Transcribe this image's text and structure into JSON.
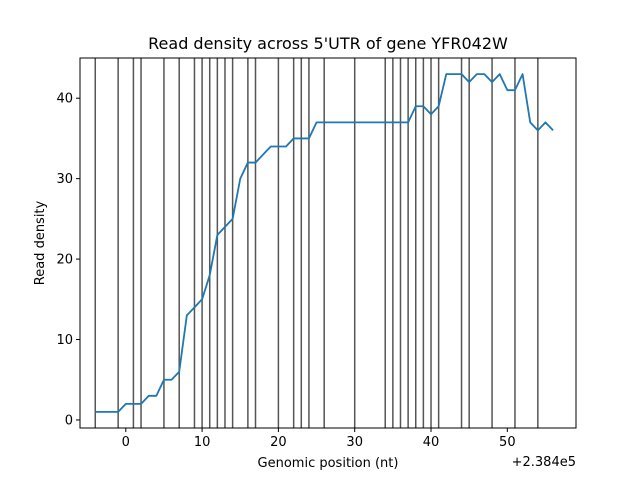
{
  "chart_data": {
    "type": "line",
    "title": "Read density across 5'UTR of gene YFR042W",
    "xlabel": "Genomic position (nt)",
    "ylabel": "Read density",
    "x_offset_label": "+2.384e5",
    "xlim": [
      -6,
      59
    ],
    "ylim": [
      -1,
      45
    ],
    "x_ticks": [
      0,
      10,
      20,
      30,
      40,
      50
    ],
    "y_ticks": [
      0,
      10,
      20,
      30,
      40
    ],
    "series_color": "#1f77b4",
    "vline_color": "#555555",
    "grid": false,
    "legend": "none",
    "vlines": [
      -4,
      -1,
      1,
      2,
      5,
      7,
      9,
      10,
      11,
      12,
      13,
      14,
      16,
      17,
      20,
      22,
      23,
      24,
      26,
      30,
      34,
      35,
      36,
      37,
      38,
      39,
      40,
      41,
      44,
      45,
      48,
      51,
      54
    ],
    "series": [
      {
        "x": [
          -4,
          -3,
          -2,
          -1,
          0,
          1,
          2,
          3,
          4,
          5,
          6,
          7,
          8,
          9,
          10,
          11,
          12,
          13,
          14,
          15,
          16,
          17,
          18,
          19,
          20,
          21,
          22,
          23,
          24,
          25,
          26,
          27,
          28,
          29,
          30,
          31,
          32,
          33,
          34,
          35,
          36,
          37,
          38,
          39,
          40,
          41,
          42,
          43,
          44,
          45,
          46,
          47,
          48,
          49,
          50,
          51,
          52,
          53,
          54,
          55,
          56
        ],
        "values": [
          1,
          1,
          1,
          1,
          2,
          2,
          2,
          3,
          3,
          5,
          5,
          6,
          13,
          14,
          15,
          18,
          23,
          24,
          25,
          30,
          32,
          32,
          33,
          34,
          34,
          34,
          35,
          35,
          35,
          37,
          37,
          37,
          37,
          37,
          37,
          37,
          37,
          37,
          37,
          37,
          37,
          37,
          39,
          39,
          38,
          39,
          43,
          43,
          43,
          42,
          43,
          43,
          42,
          43,
          41,
          41,
          43,
          37,
          36,
          37,
          36
        ]
      }
    ]
  }
}
